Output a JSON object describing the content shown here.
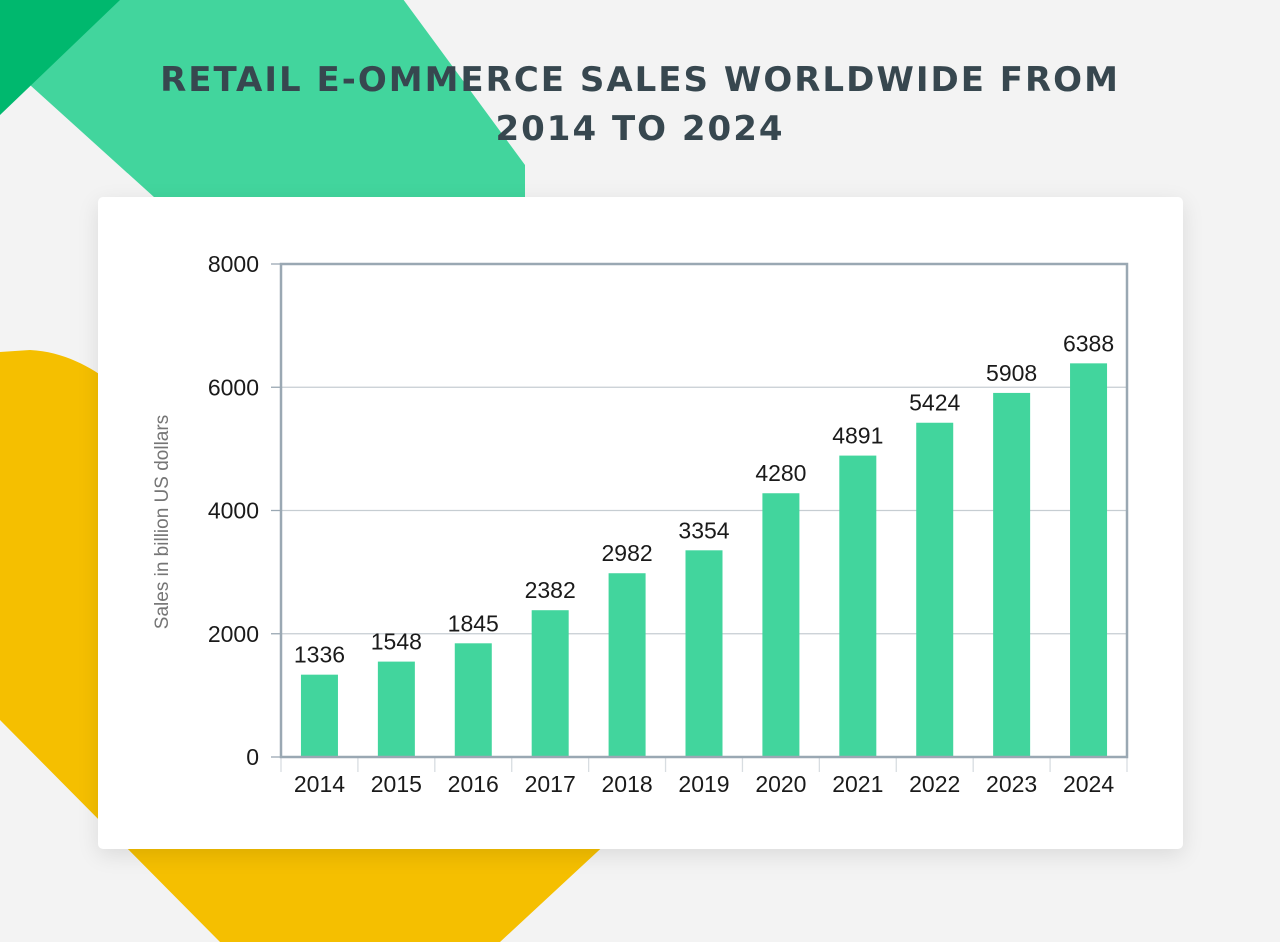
{
  "page": {
    "title": "RETAIL E-OMMERCE SALES WORLDWIDE FROM 2014 TO 2024"
  },
  "colors": {
    "background": "#f3f3f3",
    "bar": "#42d59d",
    "shape_green_light": "#42d59d",
    "shape_green_dark": "#00b86e",
    "shape_yellow": "#f5bf00",
    "title": "#37474f",
    "axis": "#9aa8b3",
    "grid": "#c6cdd2"
  },
  "chart_data": {
    "type": "bar",
    "title": "",
    "xlabel": "",
    "ylabel": "Sales in billion US dollars",
    "categories": [
      "2014",
      "2015",
      "2016",
      "2017",
      "2018",
      "2019",
      "2020",
      "2021",
      "2022",
      "2023",
      "2024"
    ],
    "values": [
      1336,
      1548,
      1845,
      2382,
      2982,
      3354,
      4280,
      4891,
      5424,
      5908,
      6388
    ],
    "ylim": [
      0,
      8000
    ],
    "yticks": [
      0,
      2000,
      4000,
      6000,
      8000
    ],
    "grid": true,
    "data_labels": true
  }
}
